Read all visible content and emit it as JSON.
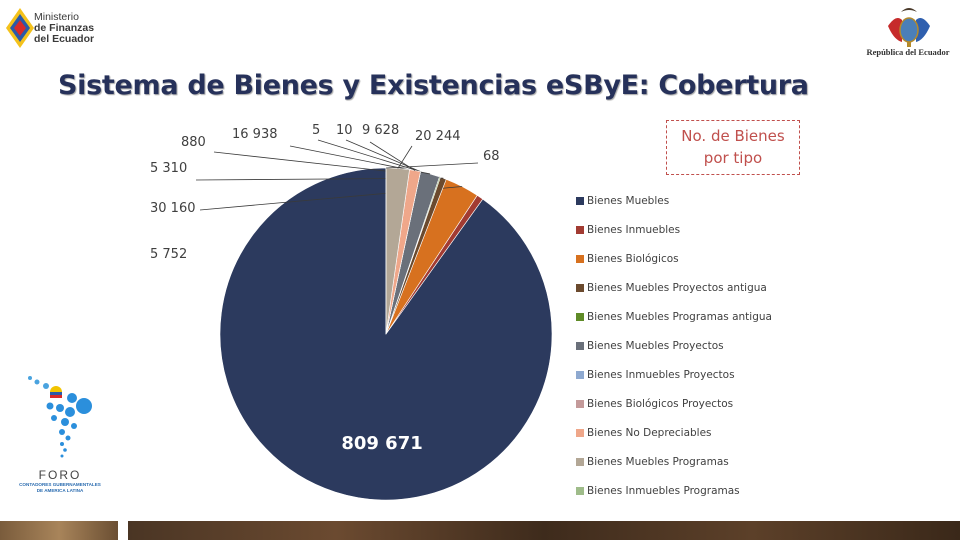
{
  "header": {
    "ministry_lines": [
      "Ministerio",
      "de Finanzas",
      "del Ecuador"
    ],
    "republic_label": "República del Ecuador"
  },
  "title": "Sistema de Bienes y Existencias eSByE: Cobertura",
  "legend_title": "No. de Bienes por tipo",
  "foro": {
    "name": "FORO",
    "subtitle_lines": [
      "CONTADORES GUBERNAMENTALES",
      "DE AMERICA LATINA"
    ]
  },
  "colors": {
    "title": "#26315a",
    "legend_title": "#c0504d",
    "big_label": "#ffffff"
  },
  "chart_data": {
    "type": "pie",
    "title": "",
    "legend_position": "right",
    "start_angle": "12 o'clock, counter-clockwise",
    "slices": [
      {
        "category": "Bienes Muebles",
        "value": 809671,
        "label": "809 671",
        "color": "#2c3a5e"
      },
      {
        "category": "Bienes Inmuebles",
        "value": 5752,
        "label": "5 752",
        "color": "#a23b32"
      },
      {
        "category": "Bienes Biológicos",
        "value": 30160,
        "label": "30 160",
        "color": "#d7711f"
      },
      {
        "category": "Bienes Muebles Proyectos antigua",
        "value": 5310,
        "label": "5 310",
        "color": "#6b4a2e"
      },
      {
        "category": "Bienes Muebles Programas antigua",
        "value": 880,
        "label": "880",
        "color": "#5f8b27"
      },
      {
        "category": "Bienes Muebles Proyectos",
        "value": 16938,
        "label": "16 938",
        "color": "#6a707a"
      },
      {
        "category": "Bienes Inmuebles Proyectos",
        "value": 5,
        "label": "5",
        "color": "#8ea9d0"
      },
      {
        "category": "Bienes Biológicos Proyectos",
        "value": 10,
        "label": "10",
        "color": "#c49a9a"
      },
      {
        "category": "Bienes No Depreciables",
        "value": 9628,
        "label": "9 628",
        "color": "#efa78a"
      },
      {
        "category": "Bienes Muebles Programas",
        "value": 20244,
        "label": "20 244",
        "color": "#b3a796"
      },
      {
        "category": "Bienes Inmuebles Programas",
        "value": 68,
        "label": "68",
        "color": "#9fbc8a"
      }
    ]
  }
}
